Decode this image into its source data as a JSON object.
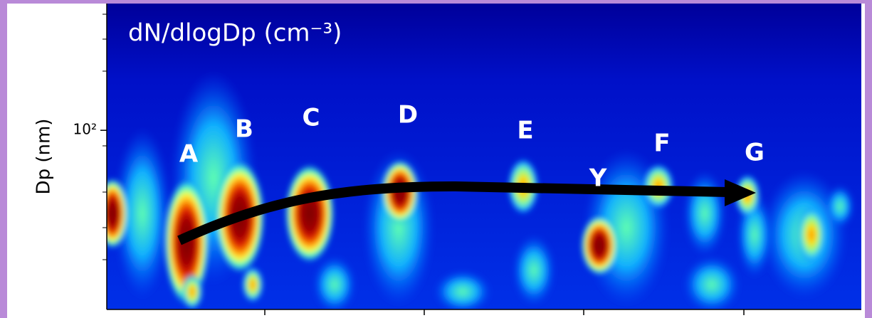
{
  "chart_data": {
    "type": "heatmap",
    "title": "dN/dlogDp (cm⁻³)",
    "y_label": "Dp (nm)",
    "ylim": [
      14.5,
      392
    ],
    "y_log": true,
    "yticks": [
      {
        "value": 100,
        "label": "10²"
      }
    ],
    "annotations": [
      "A",
      "B",
      "C",
      "D",
      "E",
      "Y",
      "F",
      "G"
    ]
  }
}
